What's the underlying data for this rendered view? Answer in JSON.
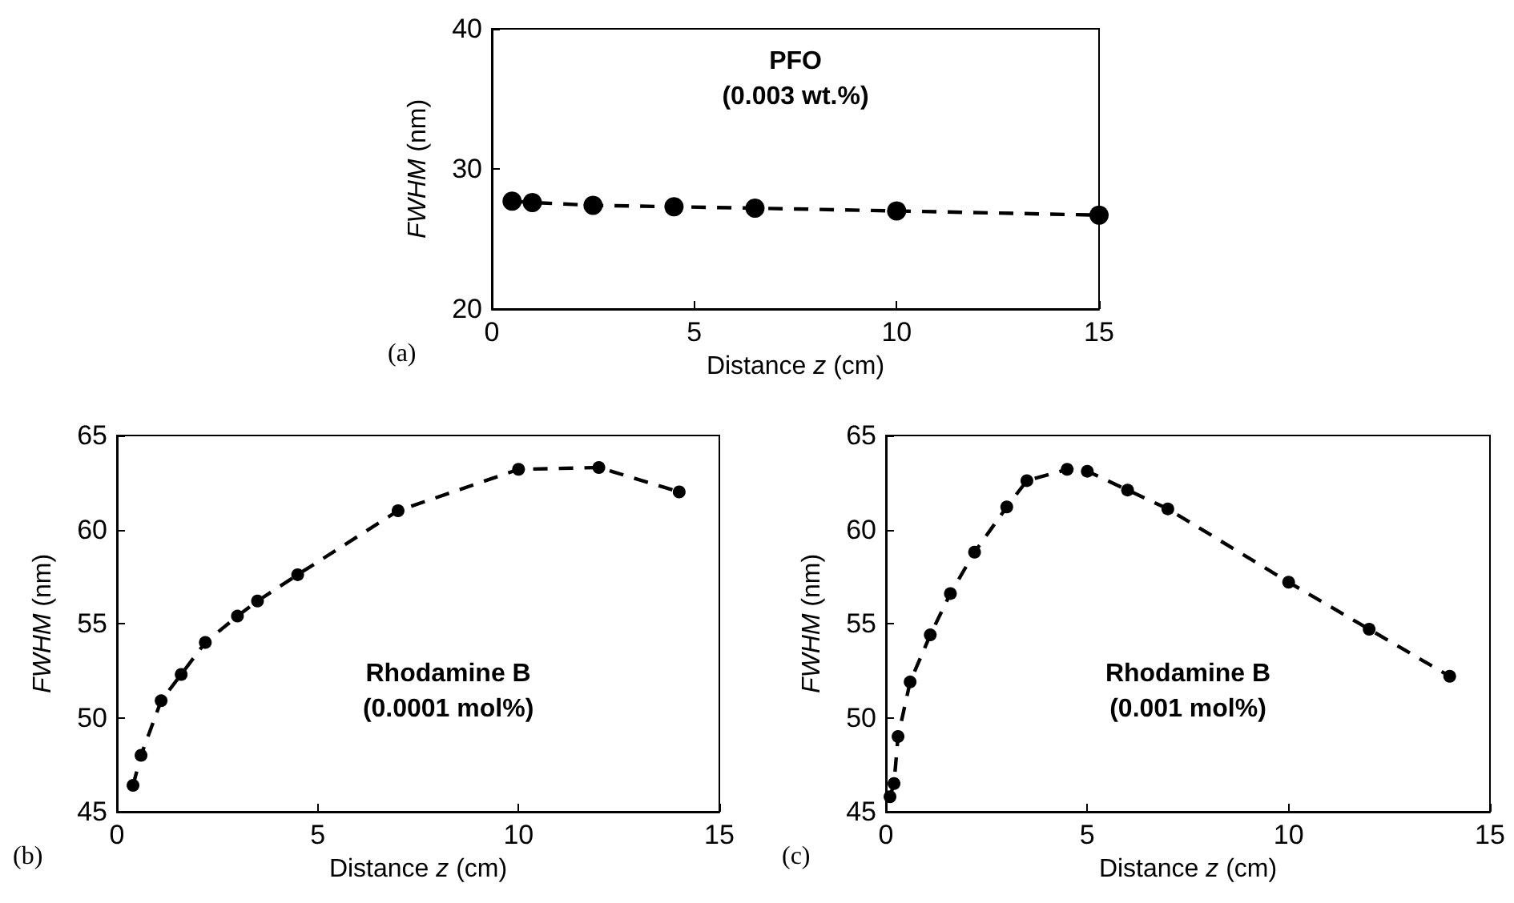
{
  "chart_data": [
    {
      "type": "line",
      "xlabel": "Distance z (cm)",
      "ylabel": "FWHM (nm)",
      "annotations": [
        "PFO\n(0.003 wt.%)",
        "(a)"
      ],
      "x": [
        0.5,
        1,
        2.5,
        4.5,
        6.5,
        10,
        15
      ],
      "series": [
        {
          "color": "#000000",
          "values": [
            27.7,
            27.6,
            27.4,
            27.3,
            27.2,
            27.0,
            26.7
          ]
        }
      ],
      "xlim": [
        0,
        15
      ],
      "xticks": [
        0,
        5,
        10,
        15
      ],
      "ylim": [
        20,
        40
      ],
      "yticks": [
        20,
        30,
        40
      ],
      "grid": false,
      "marker": "circle",
      "line_style": "dashed"
    },
    {
      "type": "line",
      "xlabel": "Distance z (cm)",
      "ylabel": "FWHM (nm)",
      "annotations": [
        "Rhodamine B\n(0.0001 mol%)",
        "(b)"
      ],
      "x": [
        0.4,
        0.6,
        1.1,
        1.6,
        2.2,
        3,
        3.5,
        4.5,
        7,
        10,
        12,
        14
      ],
      "series": [
        {
          "color": "#000000",
          "values": [
            46.4,
            48,
            50.9,
            52.3,
            54,
            55.4,
            56.2,
            57.6,
            61,
            63.2,
            63.3,
            62
          ]
        }
      ],
      "xlim": [
        0,
        15
      ],
      "xticks": [
        0,
        5,
        10,
        15
      ],
      "ylim": [
        45,
        65
      ],
      "yticks": [
        45,
        50,
        55,
        60,
        65
      ],
      "grid": false,
      "marker": "circle",
      "line_style": "dashed"
    },
    {
      "type": "line",
      "xlabel": "Distance z (cm)",
      "ylabel": "FWHM (nm)",
      "annotations": [
        "Rhodamine B\n(0.001 mol%)",
        "(c)"
      ],
      "x": [
        0.1,
        0.2,
        0.3,
        0.6,
        1.1,
        1.6,
        2.2,
        3,
        3.5,
        4.5,
        5,
        6,
        7,
        10,
        12,
        14
      ],
      "series": [
        {
          "color": "#000000",
          "values": [
            45.8,
            46.5,
            49,
            51.9,
            54.4,
            56.6,
            58.8,
            61.2,
            62.6,
            63.2,
            63.1,
            62.1,
            61.1,
            57.2,
            54.7,
            52.2
          ]
        }
      ],
      "xlim": [
        0,
        15
      ],
      "xticks": [
        0,
        5,
        10,
        15
      ],
      "ylim": [
        45,
        65
      ],
      "yticks": [
        45,
        50,
        55,
        60,
        65
      ],
      "grid": false,
      "marker": "circle",
      "line_style": "dashed"
    }
  ]
}
